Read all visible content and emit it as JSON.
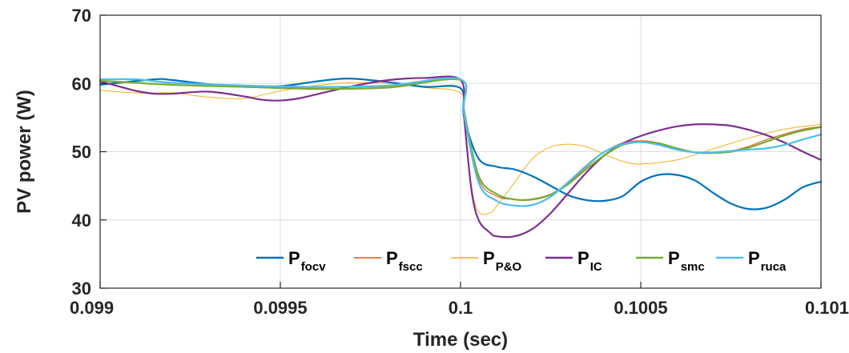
{
  "chart_data": {
    "type": "line",
    "xlabel": "Time (sec)",
    "ylabel": "PV power (W)",
    "xlim": [
      0.099,
      0.101
    ],
    "ylim": [
      30,
      70
    ],
    "xticks": [
      0.099,
      0.0995,
      0.1,
      0.1005,
      0.101
    ],
    "xtick_labels": [
      "0.099",
      "0.0995",
      "0.1",
      "0.1005",
      "0.101"
    ],
    "yticks": [
      30,
      40,
      50,
      60,
      70
    ],
    "ytick_labels": [
      "30",
      "40",
      "50",
      "60",
      "70"
    ],
    "grid": true,
    "legend_position": "bottom",
    "series": [
      {
        "name": "P",
        "subscript": "focv",
        "color": "#0072BD",
        "width": 2.2,
        "x": [
          0.099,
          0.09915,
          0.0992,
          0.0993,
          0.0994,
          0.0995,
          0.0996,
          0.09965,
          0.0997,
          0.0998,
          0.0999,
          0.1,
          0.10001,
          0.10005,
          0.1001,
          0.10015,
          0.1002,
          0.10025,
          0.1003,
          0.10035,
          0.1004,
          0.10045,
          0.1005,
          0.10055,
          0.1006,
          0.10065,
          0.1007,
          0.10075,
          0.1008,
          0.10085,
          0.1009,
          0.10095,
          0.101
        ],
        "y": [
          59.8,
          60.6,
          60.5,
          59.9,
          59.6,
          59.6,
          60.3,
          60.6,
          60.7,
          60.2,
          59.5,
          59.3,
          55.0,
          49.0,
          47.8,
          47.4,
          46.4,
          45.0,
          43.6,
          42.9,
          42.8,
          43.5,
          45.6,
          46.6,
          46.6,
          45.8,
          44.0,
          42.4,
          41.6,
          41.8,
          43.0,
          44.8,
          45.6
        ]
      },
      {
        "name": "P",
        "subscript": "fscc",
        "color": "#D9541A",
        "width": 1.0,
        "x": [
          0.099,
          0.0992,
          0.0994,
          0.0996,
          0.0998,
          0.1,
          0.10001,
          0.10005,
          0.1001,
          0.10015,
          0.1002,
          0.10025,
          0.1003,
          0.10035,
          0.1004,
          0.10045,
          0.1005,
          0.10055,
          0.1006,
          0.10065,
          0.1007,
          0.10075,
          0.1008,
          0.10085,
          0.1009,
          0.10095,
          0.101
        ],
        "y": [
          60.4,
          59.8,
          59.6,
          59.4,
          59.6,
          60.5,
          56.0,
          46.0,
          43.5,
          43.0,
          43.1,
          43.8,
          45.5,
          47.8,
          50.0,
          51.3,
          51.6,
          51.3,
          50.5,
          49.9,
          49.8,
          50.1,
          50.8,
          51.8,
          52.6,
          53.3,
          53.7
        ]
      },
      {
        "name": "P",
        "subscript": "P&O",
        "color": "#EDB120",
        "width": 1.0,
        "x": [
          0.099,
          0.0991,
          0.0992,
          0.0993,
          0.0994,
          0.0995,
          0.0996,
          0.0997,
          0.0998,
          0.0999,
          0.1,
          0.10001,
          0.10003,
          0.10005,
          0.10008,
          0.1001,
          0.10015,
          0.1002,
          0.10025,
          0.1003,
          0.10035,
          0.1004,
          0.10045,
          0.1005,
          0.1006,
          0.1007,
          0.1008,
          0.1009,
          0.101
        ],
        "y": [
          59.0,
          58.6,
          58.6,
          58.0,
          57.8,
          58.9,
          59.7,
          60.1,
          60.0,
          59.4,
          58.6,
          55.0,
          45.0,
          41.2,
          41.0,
          42.0,
          45.5,
          49.0,
          50.7,
          51.1,
          50.7,
          49.6,
          48.6,
          48.2,
          48.8,
          50.4,
          52.0,
          53.3,
          54.0
        ]
      },
      {
        "name": "P",
        "subscript": "IC",
        "color": "#7E2F8E",
        "width": 2.2,
        "x": [
          0.099,
          0.09905,
          0.0991,
          0.09915,
          0.0992,
          0.0993,
          0.0994,
          0.09945,
          0.0995,
          0.09955,
          0.0996,
          0.0997,
          0.0998,
          0.0999,
          0.1,
          0.10001,
          0.10003,
          0.10005,
          0.10008,
          0.1001,
          0.10015,
          0.1002,
          0.10025,
          0.1003,
          0.10035,
          0.1004,
          0.10045,
          0.1005,
          0.10055,
          0.1006,
          0.10065,
          0.1007,
          0.10075,
          0.1008,
          0.10085,
          0.1009,
          0.10095,
          0.101
        ],
        "y": [
          60.3,
          59.6,
          58.9,
          58.5,
          58.5,
          58.8,
          58.1,
          57.6,
          57.5,
          57.8,
          58.4,
          59.6,
          60.5,
          60.8,
          60.5,
          55.0,
          44.5,
          40.0,
          38.2,
          37.6,
          37.6,
          38.7,
          41.0,
          44.0,
          47.0,
          49.5,
          51.2,
          52.3,
          53.1,
          53.7,
          54.0,
          54.0,
          53.8,
          53.2,
          52.4,
          51.3,
          50.0,
          48.8
        ]
      },
      {
        "name": "P",
        "subscript": "smc",
        "color": "#77AC30",
        "width": 2.2,
        "x": [
          0.099,
          0.0992,
          0.0994,
          0.0996,
          0.0998,
          0.1,
          0.10001,
          0.10005,
          0.1001,
          0.10015,
          0.1002,
          0.10025,
          0.1003,
          0.10035,
          0.1004,
          0.10045,
          0.1005,
          0.10055,
          0.1006,
          0.10065,
          0.1007,
          0.10075,
          0.1008,
          0.10085,
          0.1009,
          0.10095,
          0.101
        ],
        "y": [
          60.4,
          59.8,
          59.5,
          59.2,
          59.4,
          60.5,
          56.0,
          46.5,
          43.8,
          43.0,
          43.0,
          43.7,
          45.3,
          47.5,
          49.5,
          51.0,
          51.4,
          51.2,
          50.5,
          49.9,
          49.8,
          50.0,
          50.6,
          51.5,
          52.4,
          53.1,
          53.6
        ]
      },
      {
        "name": "P",
        "subscript": "ruca",
        "color": "#4DBEEE",
        "width": 2.2,
        "x": [
          0.099,
          0.0991,
          0.0992,
          0.0994,
          0.0996,
          0.0998,
          0.1,
          0.10001,
          0.10005,
          0.1001,
          0.10015,
          0.1002,
          0.10025,
          0.1003,
          0.10035,
          0.1004,
          0.10045,
          0.1005,
          0.10055,
          0.1006,
          0.10065,
          0.1007,
          0.10075,
          0.1008,
          0.10085,
          0.1009,
          0.10095,
          0.101
        ],
        "y": [
          60.6,
          60.6,
          60.1,
          59.7,
          59.5,
          59.7,
          60.6,
          55.5,
          45.5,
          42.8,
          42.1,
          42.2,
          43.4,
          45.6,
          48.0,
          50.0,
          51.1,
          51.4,
          51.0,
          50.3,
          49.9,
          49.9,
          50.1,
          50.3,
          50.5,
          51.0,
          51.8,
          52.5
        ]
      }
    ]
  }
}
